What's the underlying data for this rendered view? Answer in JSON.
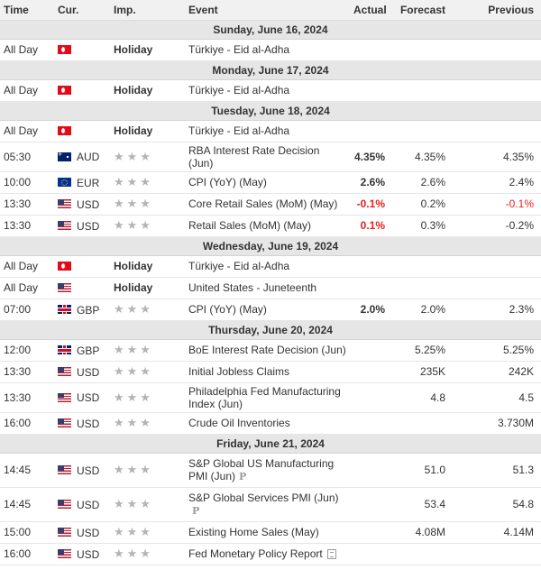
{
  "columns": {
    "time": "Time",
    "currency": "Cur.",
    "importance": "Imp.",
    "event": "Event",
    "actual": "Actual",
    "forecast": "Forecast",
    "previous": "Previous"
  },
  "colors": {
    "header_bg": "#f1f1f1",
    "date_row_bg": "#e6e6e6",
    "negative_red": "#e81e1e",
    "star_gray": "#b4b4b4"
  },
  "rows": [
    {
      "type": "date",
      "label": "Sunday, June 16, 2024"
    },
    {
      "type": "event",
      "time": "All Day",
      "flag": "flag-tr",
      "currency": "",
      "importance": "Holiday",
      "event": "Türkiye - Eid al-Adha",
      "actual": "",
      "forecast": "",
      "previous": ""
    },
    {
      "type": "date",
      "label": "Monday, June 17, 2024"
    },
    {
      "type": "event",
      "time": "All Day",
      "flag": "flag-tr",
      "currency": "",
      "importance": "Holiday",
      "event": "Türkiye - Eid al-Adha",
      "actual": "",
      "forecast": "",
      "previous": ""
    },
    {
      "type": "date",
      "label": "Tuesday, June 18, 2024"
    },
    {
      "type": "event",
      "time": "All Day",
      "flag": "flag-tr",
      "currency": "",
      "importance": "Holiday",
      "event": "Türkiye - Eid al-Adha",
      "actual": "",
      "forecast": "",
      "previous": ""
    },
    {
      "type": "event",
      "tall": true,
      "time": "05:30",
      "flag": "flag-au",
      "currency": "AUD",
      "importance": "stars-3",
      "event": "RBA Interest Rate Decision (Jun)",
      "actual": "4.35%",
      "forecast": "4.35%",
      "previous": "4.35%"
    },
    {
      "type": "event",
      "time": "10:00",
      "flag": "flag-eu",
      "currency": "EUR",
      "importance": "stars-3",
      "event": "CPI (YoY) (May)",
      "actual": "2.6%",
      "forecast": "2.6%",
      "previous": "2.4%"
    },
    {
      "type": "event",
      "time": "13:30",
      "flag": "flag-us",
      "currency": "USD",
      "importance": "stars-3",
      "event": "Core Retail Sales (MoM) (May)",
      "actual": "-0.1%",
      "actual_red": true,
      "forecast": "0.2%",
      "previous": "-0.1%",
      "previous_red": true
    },
    {
      "type": "event",
      "time": "13:30",
      "flag": "flag-us",
      "currency": "USD",
      "importance": "stars-3",
      "event": "Retail Sales (MoM) (May)",
      "actual": "0.1%",
      "actual_red": true,
      "forecast": "0.3%",
      "previous": "-0.2%"
    },
    {
      "type": "date",
      "label": "Wednesday, June 19, 2024"
    },
    {
      "type": "event",
      "time": "All Day",
      "flag": "flag-tr",
      "currency": "",
      "importance": "Holiday",
      "event": "Türkiye - Eid al-Adha",
      "actual": "",
      "forecast": "",
      "previous": ""
    },
    {
      "type": "event",
      "time": "All Day",
      "flag": "flag-us",
      "currency": "",
      "importance": "Holiday",
      "event": "United States - Juneteenth",
      "actual": "",
      "forecast": "",
      "previous": ""
    },
    {
      "type": "event",
      "time": "07:00",
      "flag": "flag-gb",
      "currency": "GBP",
      "importance": "stars-3",
      "event": "CPI (YoY) (May)",
      "actual": "2.0%",
      "forecast": "2.0%",
      "previous": "2.3%"
    },
    {
      "type": "date",
      "label": "Thursday, June 20, 2024"
    },
    {
      "type": "event",
      "time": "12:00",
      "flag": "flag-gb",
      "currency": "GBP",
      "importance": "stars-3",
      "event": "BoE Interest Rate Decision (Jun)",
      "actual": "",
      "forecast": "5.25%",
      "previous": "5.25%"
    },
    {
      "type": "event",
      "time": "13:30",
      "flag": "flag-us",
      "currency": "USD",
      "importance": "stars-3",
      "event": "Initial Jobless Claims",
      "actual": "",
      "forecast": "235K",
      "previous": "242K"
    },
    {
      "type": "event",
      "tall": true,
      "time": "13:30",
      "flag": "flag-us",
      "currency": "USD",
      "importance": "stars-3",
      "event": "Philadelphia Fed Manufacturing Index (Jun)",
      "actual": "",
      "forecast": "4.8",
      "previous": "4.5"
    },
    {
      "type": "event",
      "time": "16:00",
      "flag": "flag-us",
      "currency": "USD",
      "importance": "stars-3",
      "event": "Crude Oil Inventories",
      "actual": "",
      "forecast": "",
      "previous": "3.730M"
    },
    {
      "type": "date",
      "label": "Friday, June 21, 2024"
    },
    {
      "type": "event",
      "tall2": true,
      "time": "14:45",
      "flag": "flag-us",
      "currency": "USD",
      "importance": "stars-3",
      "event": "S&P Global US Manufacturing PMI (Jun)",
      "event_icon": "P",
      "actual": "",
      "forecast": "51.0",
      "previous": "51.3"
    },
    {
      "type": "event",
      "tall2": true,
      "time": "14:45",
      "flag": "flag-us",
      "currency": "USD",
      "importance": "stars-3",
      "event": "S&P Global Services PMI (Jun)",
      "event_icon": "P",
      "actual": "",
      "forecast": "53.4",
      "previous": "54.8"
    },
    {
      "type": "event",
      "time": "15:00",
      "flag": "flag-us",
      "currency": "USD",
      "importance": "stars-3",
      "event": "Existing Home Sales (May)",
      "actual": "",
      "forecast": "4.08M",
      "previous": "4.14M"
    },
    {
      "type": "event",
      "time": "16:00",
      "flag": "flag-us",
      "currency": "USD",
      "importance": "stars-3",
      "event": "Fed Monetary Policy Report",
      "event_doc_icon": "document-icon",
      "actual": "",
      "forecast": "",
      "previous": ""
    }
  ]
}
